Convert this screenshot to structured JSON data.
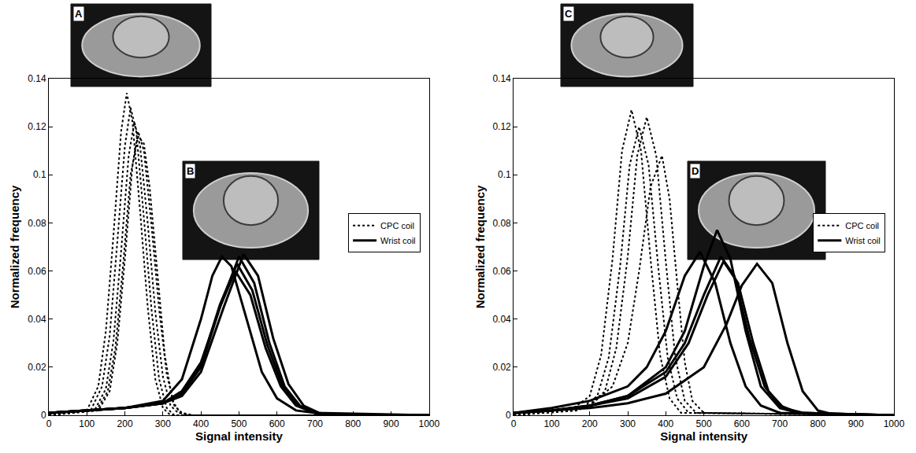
{
  "chart_data": [
    {
      "type": "line",
      "x_label": "Signal intensity",
      "y_label": "Normalized frequency",
      "annotations": [
        "A",
        "B"
      ],
      "xlim": [
        0,
        1000
      ],
      "ylim": [
        0,
        0.14
      ],
      "xticks": [
        0,
        100,
        200,
        300,
        400,
        500,
        600,
        700,
        800,
        900,
        1000
      ],
      "yticks": [
        0,
        0.02,
        0.04,
        0.06,
        0.08,
        0.1,
        0.12,
        0.14
      ],
      "legend": "center right",
      "series": [
        {
          "name": "CPC coil",
          "color": "#000000",
          "line_style": "dotted",
          "x": [
            0,
            100,
            130,
            150,
            170,
            190,
            205,
            220,
            240,
            260,
            280,
            300,
            320,
            350,
            1000
          ],
          "values": [
            0,
            0.002,
            0.012,
            0.035,
            0.075,
            0.118,
            0.134,
            0.122,
            0.085,
            0.045,
            0.015,
            0.003,
            0,
            0,
            0
          ]
        },
        {
          "name": "CPC coil",
          "color": "#000000",
          "line_style": "dotted",
          "x": [
            0,
            110,
            140,
            160,
            180,
            200,
            215,
            230,
            250,
            270,
            290,
            310,
            330,
            360,
            1000
          ],
          "values": [
            0,
            0.002,
            0.012,
            0.033,
            0.072,
            0.112,
            0.128,
            0.118,
            0.082,
            0.044,
            0.015,
            0.003,
            0,
            0,
            0
          ]
        },
        {
          "name": "CPC coil",
          "color": "#000000",
          "line_style": "dotted",
          "x": [
            0,
            120,
            150,
            170,
            190,
            210,
            225,
            240,
            260,
            280,
            300,
            320,
            340,
            370,
            1000
          ],
          "values": [
            0,
            0.002,
            0.011,
            0.031,
            0.068,
            0.108,
            0.122,
            0.112,
            0.08,
            0.043,
            0.016,
            0.004,
            0.001,
            0,
            0
          ]
        },
        {
          "name": "CPC coil",
          "color": "#000000",
          "line_style": "dotted",
          "x": [
            0,
            130,
            160,
            180,
            200,
            220,
            235,
            250,
            270,
            290,
            310,
            330,
            350,
            380,
            1000
          ],
          "values": [
            0,
            0.002,
            0.01,
            0.03,
            0.065,
            0.104,
            0.118,
            0.11,
            0.079,
            0.044,
            0.017,
            0.004,
            0.001,
            0,
            0
          ]
        },
        {
          "name": "CPC coil",
          "color": "#000000",
          "line_style": "dotted",
          "x": [
            0,
            125,
            155,
            175,
            195,
            215,
            235,
            250,
            265,
            285,
            305,
            325,
            345,
            370,
            1000
          ],
          "values": [
            0,
            0.002,
            0.01,
            0.028,
            0.062,
            0.1,
            0.116,
            0.113,
            0.095,
            0.06,
            0.025,
            0.006,
            0.001,
            0,
            0
          ]
        },
        {
          "name": "Wrist coil",
          "color": "#000000",
          "line_style": "solid",
          "x": [
            0,
            100,
            200,
            300,
            350,
            400,
            430,
            455,
            480,
            520,
            560,
            600,
            650,
            700,
            1000
          ],
          "values": [
            0.001,
            0.002,
            0.003,
            0.006,
            0.015,
            0.04,
            0.058,
            0.066,
            0.062,
            0.04,
            0.018,
            0.007,
            0.002,
            0.001,
            0
          ]
        },
        {
          "name": "Wrist coil",
          "color": "#000000",
          "line_style": "solid",
          "x": [
            0,
            100,
            200,
            300,
            350,
            400,
            450,
            490,
            530,
            570,
            610,
            650,
            700,
            750,
            1000
          ],
          "values": [
            0.001,
            0.002,
            0.003,
            0.005,
            0.01,
            0.022,
            0.045,
            0.06,
            0.05,
            0.028,
            0.012,
            0.004,
            0.001,
            0,
            0
          ]
        },
        {
          "name": "Wrist coil",
          "color": "#000000",
          "line_style": "solid",
          "x": [
            0,
            100,
            200,
            300,
            350,
            400,
            450,
            500,
            540,
            580,
            620,
            660,
            700,
            750,
            1000
          ],
          "values": [
            0.001,
            0.002,
            0.003,
            0.005,
            0.009,
            0.02,
            0.045,
            0.066,
            0.055,
            0.03,
            0.012,
            0.004,
            0.001,
            0,
            0
          ]
        },
        {
          "name": "Wrist coil",
          "color": "#000000",
          "line_style": "solid",
          "x": [
            0,
            100,
            200,
            300,
            350,
            400,
            460,
            512,
            550,
            590,
            630,
            670,
            710,
            760,
            1000
          ],
          "values": [
            0.001,
            0.002,
            0.003,
            0.005,
            0.008,
            0.018,
            0.045,
            0.067,
            0.058,
            0.032,
            0.013,
            0.004,
            0.001,
            0,
            0
          ]
        },
        {
          "name": "Wrist coil",
          "color": "#000000",
          "line_style": "solid",
          "x": [
            0,
            100,
            200,
            300,
            350,
            400,
            450,
            495,
            535,
            575,
            615,
            655,
            700,
            750,
            1000
          ],
          "values": [
            0.001,
            0.002,
            0.003,
            0.005,
            0.01,
            0.021,
            0.046,
            0.063,
            0.052,
            0.029,
            0.012,
            0.004,
            0.001,
            0,
            0
          ]
        }
      ]
    },
    {
      "type": "line",
      "x_label": "Signal intensity",
      "y_label": "Normalized frequency",
      "annotations": [
        "C",
        "D"
      ],
      "xlim": [
        0,
        1000
      ],
      "ylim": [
        0,
        0.14
      ],
      "xticks": [
        0,
        100,
        200,
        300,
        400,
        500,
        600,
        700,
        800,
        900,
        1000
      ],
      "yticks": [
        0,
        0.02,
        0.04,
        0.06,
        0.08,
        0.1,
        0.12,
        0.14
      ],
      "legend": "center right",
      "series": [
        {
          "name": "CPC coil",
          "color": "#000000",
          "line_style": "dotted",
          "x": [
            0,
            150,
            200,
            230,
            260,
            285,
            310,
            335,
            360,
            385,
            410,
            440,
            1000
          ],
          "values": [
            0,
            0.002,
            0.008,
            0.025,
            0.065,
            0.11,
            0.127,
            0.11,
            0.065,
            0.025,
            0.007,
            0.001,
            0
          ]
        },
        {
          "name": "CPC coil",
          "color": "#000000",
          "line_style": "dotted",
          "x": [
            0,
            170,
            220,
            250,
            280,
            305,
            330,
            355,
            380,
            405,
            430,
            460,
            1000
          ],
          "values": [
            0,
            0.002,
            0.008,
            0.024,
            0.062,
            0.104,
            0.12,
            0.104,
            0.062,
            0.024,
            0.007,
            0.001,
            0
          ]
        },
        {
          "name": "CPC coil",
          "color": "#000000",
          "line_style": "dotted",
          "x": [
            0,
            190,
            240,
            270,
            300,
            325,
            350,
            375,
            400,
            425,
            450,
            480,
            1000
          ],
          "values": [
            0,
            0.003,
            0.01,
            0.028,
            0.066,
            0.108,
            0.124,
            0.108,
            0.064,
            0.024,
            0.006,
            0.001,
            0
          ]
        },
        {
          "name": "CPC coil",
          "color": "#000000",
          "line_style": "dotted",
          "x": [
            0,
            200,
            260,
            300,
            330,
            360,
            390,
            410,
            430,
            450,
            470,
            500,
            1000
          ],
          "values": [
            0,
            0.004,
            0.012,
            0.03,
            0.06,
            0.095,
            0.108,
            0.09,
            0.055,
            0.022,
            0.006,
            0.001,
            0
          ]
        },
        {
          "name": "Wrist coil",
          "color": "#000000",
          "line_style": "solid",
          "x": [
            0,
            100,
            200,
            300,
            350,
            400,
            450,
            490,
            530,
            570,
            610,
            650,
            700,
            1000
          ],
          "values": [
            0.001,
            0.003,
            0.006,
            0.012,
            0.02,
            0.035,
            0.058,
            0.068,
            0.055,
            0.03,
            0.012,
            0.004,
            0.001,
            0
          ]
        },
        {
          "name": "Wrist coil",
          "color": "#000000",
          "line_style": "solid",
          "x": [
            0,
            100,
            200,
            300,
            400,
            450,
            500,
            535,
            570,
            610,
            650,
            700,
            750,
            1000
          ],
          "values": [
            0.001,
            0.002,
            0.004,
            0.008,
            0.02,
            0.035,
            0.062,
            0.077,
            0.065,
            0.035,
            0.012,
            0.003,
            0.001,
            0
          ]
        },
        {
          "name": "Wrist coil",
          "color": "#000000",
          "line_style": "solid",
          "x": [
            0,
            100,
            200,
            300,
            400,
            450,
            500,
            545,
            580,
            620,
            660,
            700,
            750,
            1000
          ],
          "values": [
            0.001,
            0.002,
            0.004,
            0.008,
            0.018,
            0.03,
            0.05,
            0.066,
            0.058,
            0.032,
            0.012,
            0.004,
            0.001,
            0
          ]
        },
        {
          "name": "Wrist coil",
          "color": "#000000",
          "line_style": "solid",
          "x": [
            0,
            100,
            200,
            300,
            400,
            460,
            510,
            552,
            590,
            630,
            670,
            710,
            760,
            1000
          ],
          "values": [
            0.001,
            0.002,
            0.004,
            0.007,
            0.016,
            0.03,
            0.05,
            0.064,
            0.055,
            0.03,
            0.01,
            0.003,
            0.001,
            0
          ]
        },
        {
          "name": "Wrist coil",
          "color": "#000000",
          "line_style": "solid",
          "x": [
            0,
            100,
            200,
            300,
            400,
            500,
            560,
            600,
            640,
            680,
            720,
            760,
            800,
            850,
            1000
          ],
          "values": [
            0.001,
            0.002,
            0.003,
            0.005,
            0.009,
            0.02,
            0.038,
            0.054,
            0.063,
            0.055,
            0.03,
            0.01,
            0.002,
            0,
            0
          ]
        }
      ]
    }
  ]
}
